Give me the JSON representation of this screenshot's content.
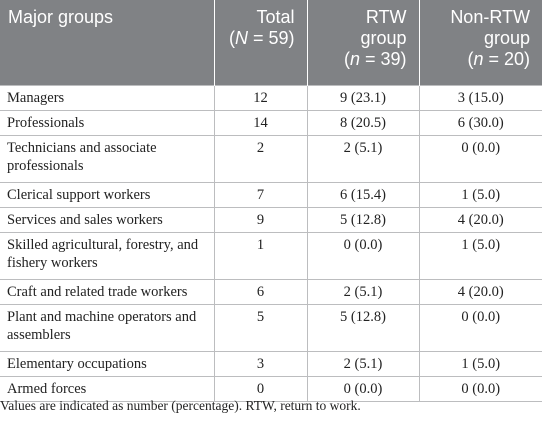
{
  "table": {
    "headers": {
      "group": "Major groups",
      "total_line1": "Total",
      "total_n_label": "N",
      "total_n_rest": " = 59)",
      "rtw_line1": "RTW",
      "rtw_line2": "group",
      "rtw_n_label": "n",
      "rtw_n_rest": " = 39)",
      "nonrtw_line1": "Non-RTW",
      "nonrtw_line2": "group",
      "nonrtw_n_label": "n",
      "nonrtw_n_rest": " = 20)"
    },
    "rows": [
      {
        "group": "Managers",
        "total": "12",
        "rtw": "9 (23.1)",
        "nonrtw": "3 (15.0)"
      },
      {
        "group": "Professionals",
        "total": "14",
        "rtw": "8 (20.5)",
        "nonrtw": "6 (30.0)"
      },
      {
        "group": "Technicians and associate professionals",
        "total": "2",
        "rtw": "2 (5.1)",
        "nonrtw": "0 (0.0)"
      },
      {
        "group": "Clerical support workers",
        "total": "7",
        "rtw": "6 (15.4)",
        "nonrtw": "1 (5.0)"
      },
      {
        "group": "Services and sales workers",
        "total": "9",
        "rtw": "5 (12.8)",
        "nonrtw": "4 (20.0)"
      },
      {
        "group": "Skilled agricultural, forestry, and fishery workers",
        "total": "1",
        "rtw": "0 (0.0)",
        "nonrtw": "1 (5.0)"
      },
      {
        "group": "Craft and related trade workers",
        "total": "6",
        "rtw": "2 (5.1)",
        "nonrtw": "4 (20.0)"
      },
      {
        "group": "Plant and machine operators and assemblers",
        "total": "5",
        "rtw": "5 (12.8)",
        "nonrtw": "0 (0.0)"
      },
      {
        "group": "Elementary occupations",
        "total": "3",
        "rtw": "2 (5.1)",
        "nonrtw": "1 (5.0)"
      },
      {
        "group": "Armed forces",
        "total": "0",
        "rtw": "0 (0.0)",
        "nonrtw": "0 (0.0)"
      }
    ]
  },
  "footnote": "Values are indicated as number (percentage). RTW, return to work."
}
